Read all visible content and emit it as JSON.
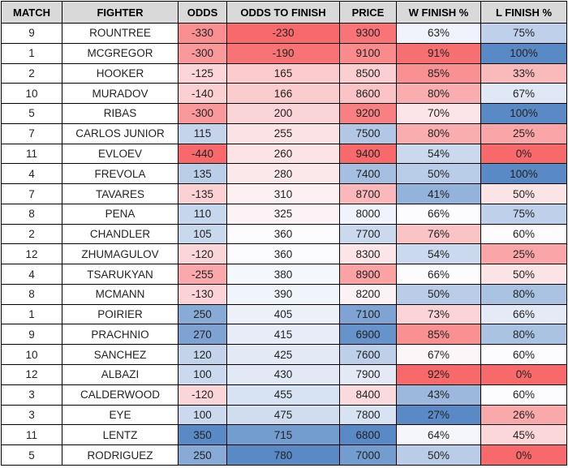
{
  "theme": {
    "header_bg": "#D9D9D9",
    "border_color": "#000000",
    "text_color": "#232323",
    "plain_cell_bg": "#FFFFFF",
    "scale_red": "#F8696B",
    "scale_white": "#FCFCFF",
    "scale_blue": "#5A8AC6"
  },
  "table": {
    "columns": [
      {
        "key": "match",
        "label": "MATCH"
      },
      {
        "key": "fighter",
        "label": "FIGHTER"
      },
      {
        "key": "odds",
        "label": "ODDS",
        "scale": {
          "min": -440,
          "mid": -10,
          "max": 350,
          "min_color": "#F8696B",
          "mid_color": "#FCFCFF",
          "max_color": "#5A8AC6"
        }
      },
      {
        "key": "odds_to_finish",
        "label": "ODDS TO FINISH",
        "scale": {
          "min": -230,
          "mid": 360,
          "max": 780,
          "min_color": "#F8696B",
          "mid_color": "#FCFCFF",
          "max_color": "#5A8AC6"
        }
      },
      {
        "key": "price",
        "label": "PRICE",
        "scale": {
          "min": 6800,
          "mid": 8100,
          "max": 9400,
          "min_color": "#5A8AC6",
          "mid_color": "#FCFCFF",
          "max_color": "#F8696B"
        }
      },
      {
        "key": "w_finish",
        "label": "W FINISH %",
        "suffix": "%",
        "scale": {
          "min": 27,
          "mid": 66,
          "max": 92,
          "min_color": "#5A8AC6",
          "mid_color": "#FCFCFF",
          "max_color": "#F8696B"
        }
      },
      {
        "key": "l_finish",
        "label": "L FINISH %",
        "suffix": "%",
        "scale": {
          "min": 0,
          "mid": 60,
          "max": 100,
          "min_color": "#F8696B",
          "mid_color": "#FCFCFF",
          "max_color": "#5A8AC6"
        }
      }
    ],
    "rows": [
      {
        "match": 9,
        "fighter": "ROUNTREE",
        "odds": -330,
        "odds_to_finish": -230,
        "price": 9300,
        "w_finish": 63,
        "l_finish": 75
      },
      {
        "match": 1,
        "fighter": "MCGREGOR",
        "odds": -300,
        "odds_to_finish": -190,
        "price": 9100,
        "w_finish": 91,
        "l_finish": 100
      },
      {
        "match": 2,
        "fighter": "HOOKER",
        "odds": -125,
        "odds_to_finish": 165,
        "price": 8500,
        "w_finish": 85,
        "l_finish": 33
      },
      {
        "match": 10,
        "fighter": "MURADOV",
        "odds": -140,
        "odds_to_finish": 166,
        "price": 8600,
        "w_finish": 80,
        "l_finish": 67
      },
      {
        "match": 5,
        "fighter": "RIBAS",
        "odds": -300,
        "odds_to_finish": 200,
        "price": 9200,
        "w_finish": 70,
        "l_finish": 100
      },
      {
        "match": 7,
        "fighter": "CARLOS JUNIOR",
        "odds": 115,
        "odds_to_finish": 255,
        "price": 7500,
        "w_finish": 80,
        "l_finish": 25
      },
      {
        "match": 11,
        "fighter": "EVLOEV",
        "odds": -440,
        "odds_to_finish": 260,
        "price": 9400,
        "w_finish": 54,
        "l_finish": 0
      },
      {
        "match": 4,
        "fighter": "FREVOLA",
        "odds": 135,
        "odds_to_finish": 280,
        "price": 7400,
        "w_finish": 50,
        "l_finish": 100
      },
      {
        "match": 7,
        "fighter": "TAVARES",
        "odds": -135,
        "odds_to_finish": 310,
        "price": 8700,
        "w_finish": 41,
        "l_finish": 50
      },
      {
        "match": 8,
        "fighter": "PENA",
        "odds": 110,
        "odds_to_finish": 325,
        "price": 8000,
        "w_finish": 66,
        "l_finish": 75
      },
      {
        "match": 2,
        "fighter": "CHANDLER",
        "odds": 105,
        "odds_to_finish": 360,
        "price": 7700,
        "w_finish": 76,
        "l_finish": 60
      },
      {
        "match": 12,
        "fighter": "ZHUMAGULOV",
        "odds": -120,
        "odds_to_finish": 360,
        "price": 8300,
        "w_finish": 54,
        "l_finish": 25
      },
      {
        "match": 4,
        "fighter": "TSARUKYAN",
        "odds": -255,
        "odds_to_finish": 380,
        "price": 8900,
        "w_finish": 66,
        "l_finish": 50
      },
      {
        "match": 8,
        "fighter": "MCMANN",
        "odds": -130,
        "odds_to_finish": 390,
        "price": 8200,
        "w_finish": 50,
        "l_finish": 80
      },
      {
        "match": 1,
        "fighter": "POIRIER",
        "odds": 250,
        "odds_to_finish": 405,
        "price": 7100,
        "w_finish": 73,
        "l_finish": 66
      },
      {
        "match": 9,
        "fighter": "PRACHNIO",
        "odds": 270,
        "odds_to_finish": 415,
        "price": 6900,
        "w_finish": 85,
        "l_finish": 80
      },
      {
        "match": 10,
        "fighter": "SANCHEZ",
        "odds": 120,
        "odds_to_finish": 425,
        "price": 7600,
        "w_finish": 67,
        "l_finish": 60
      },
      {
        "match": 12,
        "fighter": "ALBAZI",
        "odds": 100,
        "odds_to_finish": 430,
        "price": 7900,
        "w_finish": 92,
        "l_finish": 0
      },
      {
        "match": 3,
        "fighter": "CALDERWOOD",
        "odds": -120,
        "odds_to_finish": 455,
        "price": 8400,
        "w_finish": 43,
        "l_finish": 60
      },
      {
        "match": 3,
        "fighter": "EYE",
        "odds": 100,
        "odds_to_finish": 475,
        "price": 7800,
        "w_finish": 27,
        "l_finish": 26
      },
      {
        "match": 11,
        "fighter": "LENTZ",
        "odds": 350,
        "odds_to_finish": 715,
        "price": 6800,
        "w_finish": 64,
        "l_finish": 45
      },
      {
        "match": 5,
        "fighter": "RODRIGUEZ",
        "odds": 250,
        "odds_to_finish": 780,
        "price": 7000,
        "w_finish": 50,
        "l_finish": 0
      }
    ]
  }
}
